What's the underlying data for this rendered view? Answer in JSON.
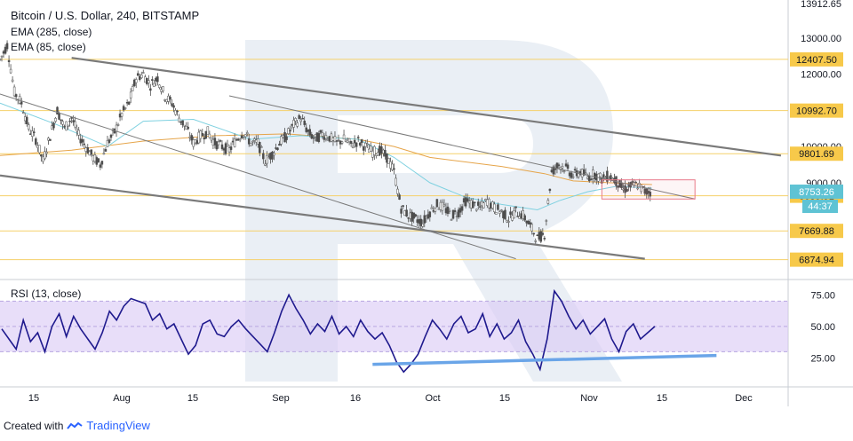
{
  "header": {
    "symbol_title": "Bitcoin / U.S. Dollar, 240, BITSTAMP",
    "ema_slow_label": "EMA (285, close)",
    "ema_fast_label": "EMA (85, close)",
    "rsi_label": "RSI (13, close)"
  },
  "footer": {
    "created_with": "Created with",
    "brand": "TradingView"
  },
  "colors": {
    "candle_up": "#4d4d4d",
    "candle_down": "#4d4d4d",
    "ema_slow": "#e6a54a",
    "ema_fast": "#7fd1e0",
    "level_line": "#f5d16a",
    "channel_line": "#7a7a7a",
    "rsi_line": "#1f1a8e",
    "rsi_band": "#d9c8f5",
    "rsi_trend": "#6aa5e8",
    "target_box": "#e87a8a",
    "watermark": "#e3e9f1"
  },
  "chart_data": {
    "type": "candlestick",
    "title": "Bitcoin / U.S. Dollar, 240, BITSTAMP",
    "price_axis": {
      "tick_labels": [
        "13000.00",
        "12000.00",
        "10000.00",
        "9000.00"
      ],
      "partial_top_label": "13912.65",
      "ylim": [
        6400,
        13950
      ]
    },
    "price_levels": [
      12407.5,
      10992.7,
      9801.69,
      8639.91,
      7669.88,
      6874.94
    ],
    "price_level_labels": [
      "12407.50",
      "10992.70",
      "9801.69",
      "8639.91",
      "7669.88",
      "6874.94"
    ],
    "current_price": {
      "value": 8753.26,
      "label": "8753.26",
      "countdown": "44:37"
    },
    "time_axis": {
      "tick_labels": [
        "15",
        "Aug",
        "15",
        "Sep",
        "16",
        "Oct",
        "15",
        "Nov",
        "15",
        "Dec"
      ]
    },
    "series_close_path": [
      [
        0,
        12400
      ],
      [
        1,
        12800
      ],
      [
        2,
        11500
      ],
      [
        3,
        11200
      ],
      [
        4,
        10500
      ],
      [
        5,
        10200
      ],
      [
        6,
        9600
      ],
      [
        7,
        10300
      ],
      [
        8,
        11000
      ],
      [
        9,
        10500
      ],
      [
        10,
        10800
      ],
      [
        11,
        10300
      ],
      [
        12,
        10000
      ],
      [
        13,
        9700
      ],
      [
        14,
        9500
      ],
      [
        15,
        10100
      ],
      [
        16,
        10400
      ],
      [
        17,
        10900
      ],
      [
        18,
        11200
      ],
      [
        19,
        11900
      ],
      [
        20,
        12000
      ],
      [
        21,
        11700
      ],
      [
        22,
        11900
      ],
      [
        23,
        11400
      ],
      [
        24,
        11200
      ],
      [
        25,
        10800
      ],
      [
        26,
        10500
      ],
      [
        27,
        10100
      ],
      [
        28,
        10300
      ],
      [
        29,
        10400
      ],
      [
        30,
        10100
      ],
      [
        31,
        10000
      ],
      [
        32,
        9900
      ],
      [
        33,
        10200
      ],
      [
        34,
        10400
      ],
      [
        35,
        10100
      ],
      [
        36,
        10100
      ],
      [
        37,
        9600
      ],
      [
        38,
        9800
      ],
      [
        39,
        10100
      ],
      [
        40,
        10300
      ],
      [
        41,
        10600
      ],
      [
        42,
        10800
      ],
      [
        43,
        10400
      ],
      [
        44,
        10200
      ],
      [
        45,
        10350
      ],
      [
        46,
        10250
      ],
      [
        47,
        10100
      ],
      [
        48,
        10200
      ],
      [
        49,
        10050
      ],
      [
        50,
        10150
      ],
      [
        51,
        10000
      ],
      [
        52,
        9850
      ],
      [
        53,
        9900
      ],
      [
        54,
        9700
      ],
      [
        55,
        9300
      ],
      [
        56,
        8300
      ],
      [
        57,
        8100
      ],
      [
        58,
        8000
      ],
      [
        59,
        7900
      ],
      [
        60,
        8200
      ],
      [
        61,
        8400
      ],
      [
        62,
        8300
      ],
      [
        63,
        8100
      ],
      [
        64,
        8200
      ],
      [
        65,
        8500
      ],
      [
        66,
        8400
      ],
      [
        67,
        8300
      ],
      [
        68,
        8500
      ],
      [
        69,
        8300
      ],
      [
        70,
        8200
      ],
      [
        71,
        8000
      ],
      [
        72,
        8200
      ],
      [
        73,
        8100
      ],
      [
        74,
        7800
      ],
      [
        75,
        7450
      ],
      [
        76,
        7600
      ],
      [
        77,
        9300
      ],
      [
        78,
        9500
      ],
      [
        79,
        9400
      ],
      [
        80,
        9200
      ],
      [
        81,
        9300
      ],
      [
        82,
        9150
      ],
      [
        83,
        9250
      ],
      [
        84,
        9100
      ],
      [
        85,
        9200
      ],
      [
        86,
        9050
      ],
      [
        87,
        8800
      ],
      [
        88,
        8900
      ],
      [
        89,
        8950
      ],
      [
        90,
        8750
      ],
      [
        91,
        8753
      ]
    ],
    "ema_slow_path": [
      [
        0,
        9750
      ],
      [
        10,
        9900
      ],
      [
        20,
        10150
      ],
      [
        30,
        10300
      ],
      [
        40,
        10350
      ],
      [
        50,
        10200
      ],
      [
        55,
        10000
      ],
      [
        60,
        9700
      ],
      [
        70,
        9450
      ],
      [
        76,
        9250
      ],
      [
        80,
        9050
      ],
      [
        85,
        9000
      ],
      [
        91,
        8950
      ]
    ],
    "ema_fast_path": [
      [
        0,
        11200
      ],
      [
        8,
        10600
      ],
      [
        15,
        10000
      ],
      [
        20,
        10700
      ],
      [
        27,
        10750
      ],
      [
        35,
        10200
      ],
      [
        42,
        10300
      ],
      [
        50,
        10200
      ],
      [
        55,
        9700
      ],
      [
        60,
        9000
      ],
      [
        65,
        8600
      ],
      [
        70,
        8400
      ],
      [
        75,
        8250
      ],
      [
        78,
        8500
      ],
      [
        82,
        8750
      ],
      [
        86,
        8900
      ],
      [
        91,
        8850
      ]
    ],
    "channel_lines": [
      {
        "from": [
          10,
          12450
        ],
        "to": [
          109,
          9750
        ]
      },
      {
        "from": [
          0,
          9200
        ],
        "to": [
          90,
          6900
        ]
      },
      {
        "from": [
          32,
          11400
        ],
        "to": [
          97,
          8550
        ]
      },
      {
        "from": [
          0,
          11450
        ],
        "to": [
          72,
          6900
        ]
      }
    ],
    "target_zone": {
      "x_from": 84,
      "x_to": 97,
      "price_low": 8550,
      "price_high": 9080
    },
    "rsi": {
      "tick_labels": [
        "75.00",
        "50.00",
        "25.00"
      ],
      "ylim": [
        5,
        85
      ],
      "band": [
        30,
        70
      ],
      "values": [
        48,
        40,
        32,
        55,
        38,
        45,
        30,
        50,
        60,
        42,
        58,
        48,
        40,
        32,
        45,
        62,
        55,
        66,
        72,
        70,
        68,
        55,
        60,
        48,
        52,
        40,
        28,
        35,
        52,
        55,
        44,
        42,
        50,
        55,
        48,
        42,
        36,
        30,
        45,
        62,
        75,
        64,
        55,
        44,
        52,
        46,
        58,
        44,
        50,
        42,
        55,
        46,
        40,
        45,
        35,
        22,
        14,
        20,
        28,
        42,
        55,
        48,
        40,
        52,
        58,
        45,
        48,
        60,
        42,
        52,
        40,
        45,
        55,
        38,
        28,
        16,
        40,
        78,
        70,
        58,
        48,
        55,
        44,
        50,
        56,
        40,
        30,
        46,
        52,
        40,
        45,
        50
      ],
      "trendline": {
        "from": [
          52,
          20
        ],
        "to": [
          100,
          27
        ]
      }
    }
  }
}
